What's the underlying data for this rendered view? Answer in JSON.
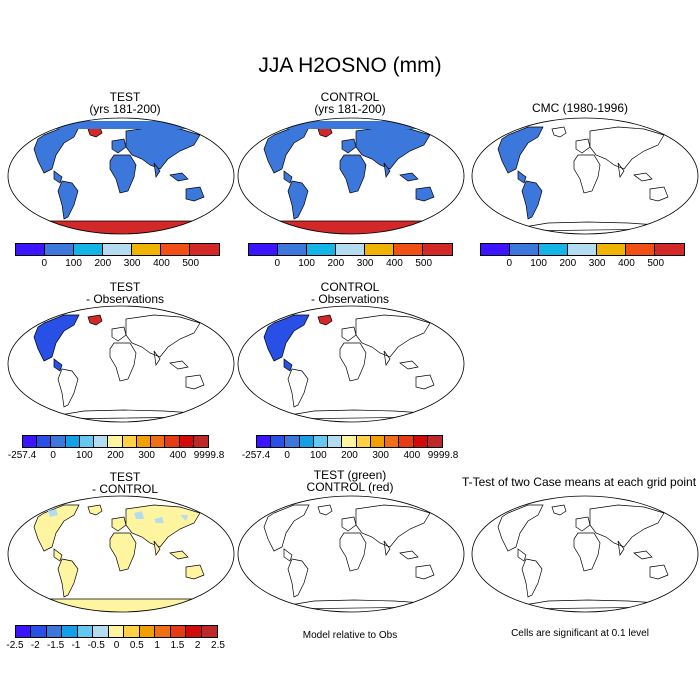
{
  "title": "JJA H2OSNO (mm)",
  "panels": [
    {
      "id": "test",
      "title": [
        "TEST",
        "(yrs 181-200)"
      ],
      "field": "snow-full"
    },
    {
      "id": "control",
      "title": [
        "CONTROL",
        "(yrs 181-200)"
      ],
      "field": "snow-full"
    },
    {
      "id": "cmc",
      "title": [
        "CMC (1980-1996)"
      ],
      "field": "snow-obs"
    },
    {
      "id": "test-obs",
      "title": [
        "TEST",
        "- Observations"
      ],
      "field": "diff-obs"
    },
    {
      "id": "control-obs",
      "title": [
        "CONTROL",
        "- Observations"
      ],
      "field": "diff-obs"
    },
    {
      "id": "test-control",
      "title": [
        "TEST",
        "- CONTROL"
      ],
      "field": "diff-small"
    },
    {
      "id": "test-green-control-red",
      "title": [
        "TEST (green)",
        "CONTROL (red)"
      ],
      "field": "none"
    },
    {
      "id": "ttest",
      "title": [
        "T-Test of two Case means at each grid point"
      ],
      "field": "none"
    }
  ],
  "colorbars": {
    "absolute": {
      "colors": [
        "#3c14ff",
        "#3c78dc",
        "#14b4e6",
        "#b4dcf0",
        "#f0b400",
        "#f05014",
        "#d22828"
      ],
      "labels": [
        "0",
        "100",
        "200",
        "300",
        "400",
        "500"
      ]
    },
    "vs_obs": {
      "colors": [
        "#3c14ff",
        "#2850e6",
        "#3c78dc",
        "#14a0e6",
        "#64c8f0",
        "#b4dcf0",
        "#fff5a0",
        "#ffd246",
        "#f0a000",
        "#f06e14",
        "#e63c14",
        "#d20a0a",
        "#be2828"
      ],
      "labels": [
        "-257.4",
        "0",
        "100",
        "200",
        "300",
        "400",
        "9999.8"
      ]
    },
    "vs_control": {
      "colors": [
        "#3c14ff",
        "#2850e6",
        "#3c78dc",
        "#14a0e6",
        "#64c8f0",
        "#b4dcf0",
        "#fff5a0",
        "#ffd246",
        "#f0a000",
        "#f06e14",
        "#e63c14",
        "#d20a0a",
        "#be2828"
      ],
      "labels": [
        "-2.5",
        "-2",
        "-1.5",
        "-1",
        "-0.5",
        "0",
        "0.5",
        "1",
        "1.5",
        "2",
        "2.5"
      ]
    }
  },
  "notes": {
    "model_relative": "Model relative to Obs",
    "significance": "Cells are significant at 0.1 level"
  },
  "colors": {
    "snow_fill": "#3c78dc",
    "ice_fill": "#d22828",
    "diff_neg_fill": "#2850e6",
    "near_zero_fill": "#fff5a0",
    "light_blue_fill": "#b4dcf0"
  }
}
